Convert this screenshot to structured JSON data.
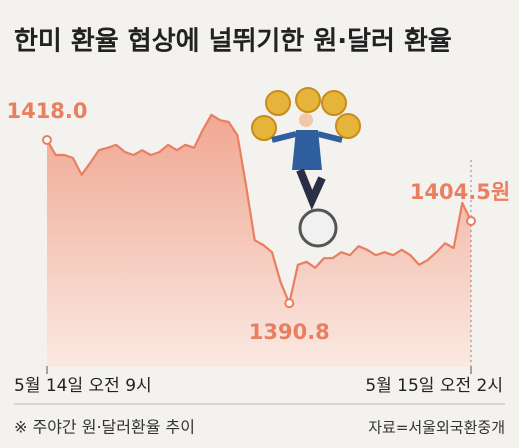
{
  "chart_data": {
    "type": "line",
    "title": "한미 환율 협상에 널뛰기한 원·달러 환율",
    "categories": [
      "5월 14일 오전 9시",
      null,
      null,
      null,
      null,
      null,
      null,
      null,
      null,
      null,
      null,
      null,
      null,
      null,
      null,
      null,
      null,
      null,
      null,
      null,
      null,
      null,
      null,
      null,
      null,
      null,
      null,
      null,
      null,
      null,
      null,
      null,
      null,
      null,
      null,
      null,
      null,
      null,
      null,
      null,
      null,
      null,
      null,
      null,
      null,
      null,
      null,
      null,
      null,
      "5월 15일 오전 2시"
    ],
    "values": [
      1418.0,
      1415.5,
      1415.5,
      1415.0,
      1412.2,
      1414.2,
      1416.3,
      1416.7,
      1417.2,
      1416.0,
      1415.5,
      1416.3,
      1415.5,
      1416.0,
      1417.2,
      1416.3,
      1417.2,
      1416.7,
      1419.7,
      1422.2,
      1421.3,
      1421.0,
      1418.8,
      1410.5,
      1401.3,
      1400.5,
      1399.3,
      1394.3,
      1390.8,
      1397.2,
      1397.7,
      1396.7,
      1398.3,
      1398.3,
      1399.3,
      1398.8,
      1400.3,
      1399.7,
      1398.8,
      1399.3,
      1398.8,
      1399.7,
      1398.8,
      1397.2,
      1398.0,
      1399.3,
      1400.8,
      1400.0,
      1407.5,
      1404.5
    ],
    "value_labels": [
      "1418.0",
      null,
      null,
      null,
      null,
      null,
      null,
      null,
      null,
      null,
      null,
      null,
      null,
      null,
      null,
      null,
      null,
      null,
      null,
      null,
      null,
      null,
      null,
      null,
      null,
      null,
      null,
      null,
      "1390.8",
      null,
      null,
      null,
      null,
      null,
      null,
      null,
      null,
      null,
      null,
      null,
      null,
      null,
      null,
      null,
      null,
      null,
      null,
      null,
      null,
      "1404.5원"
    ],
    "color": "#e97f61",
    "ylim": [
      1381,
      1428
    ],
    "note": "※ 주야간 원·달러환율 추이",
    "source": "자료=서울외국환중개"
  }
}
